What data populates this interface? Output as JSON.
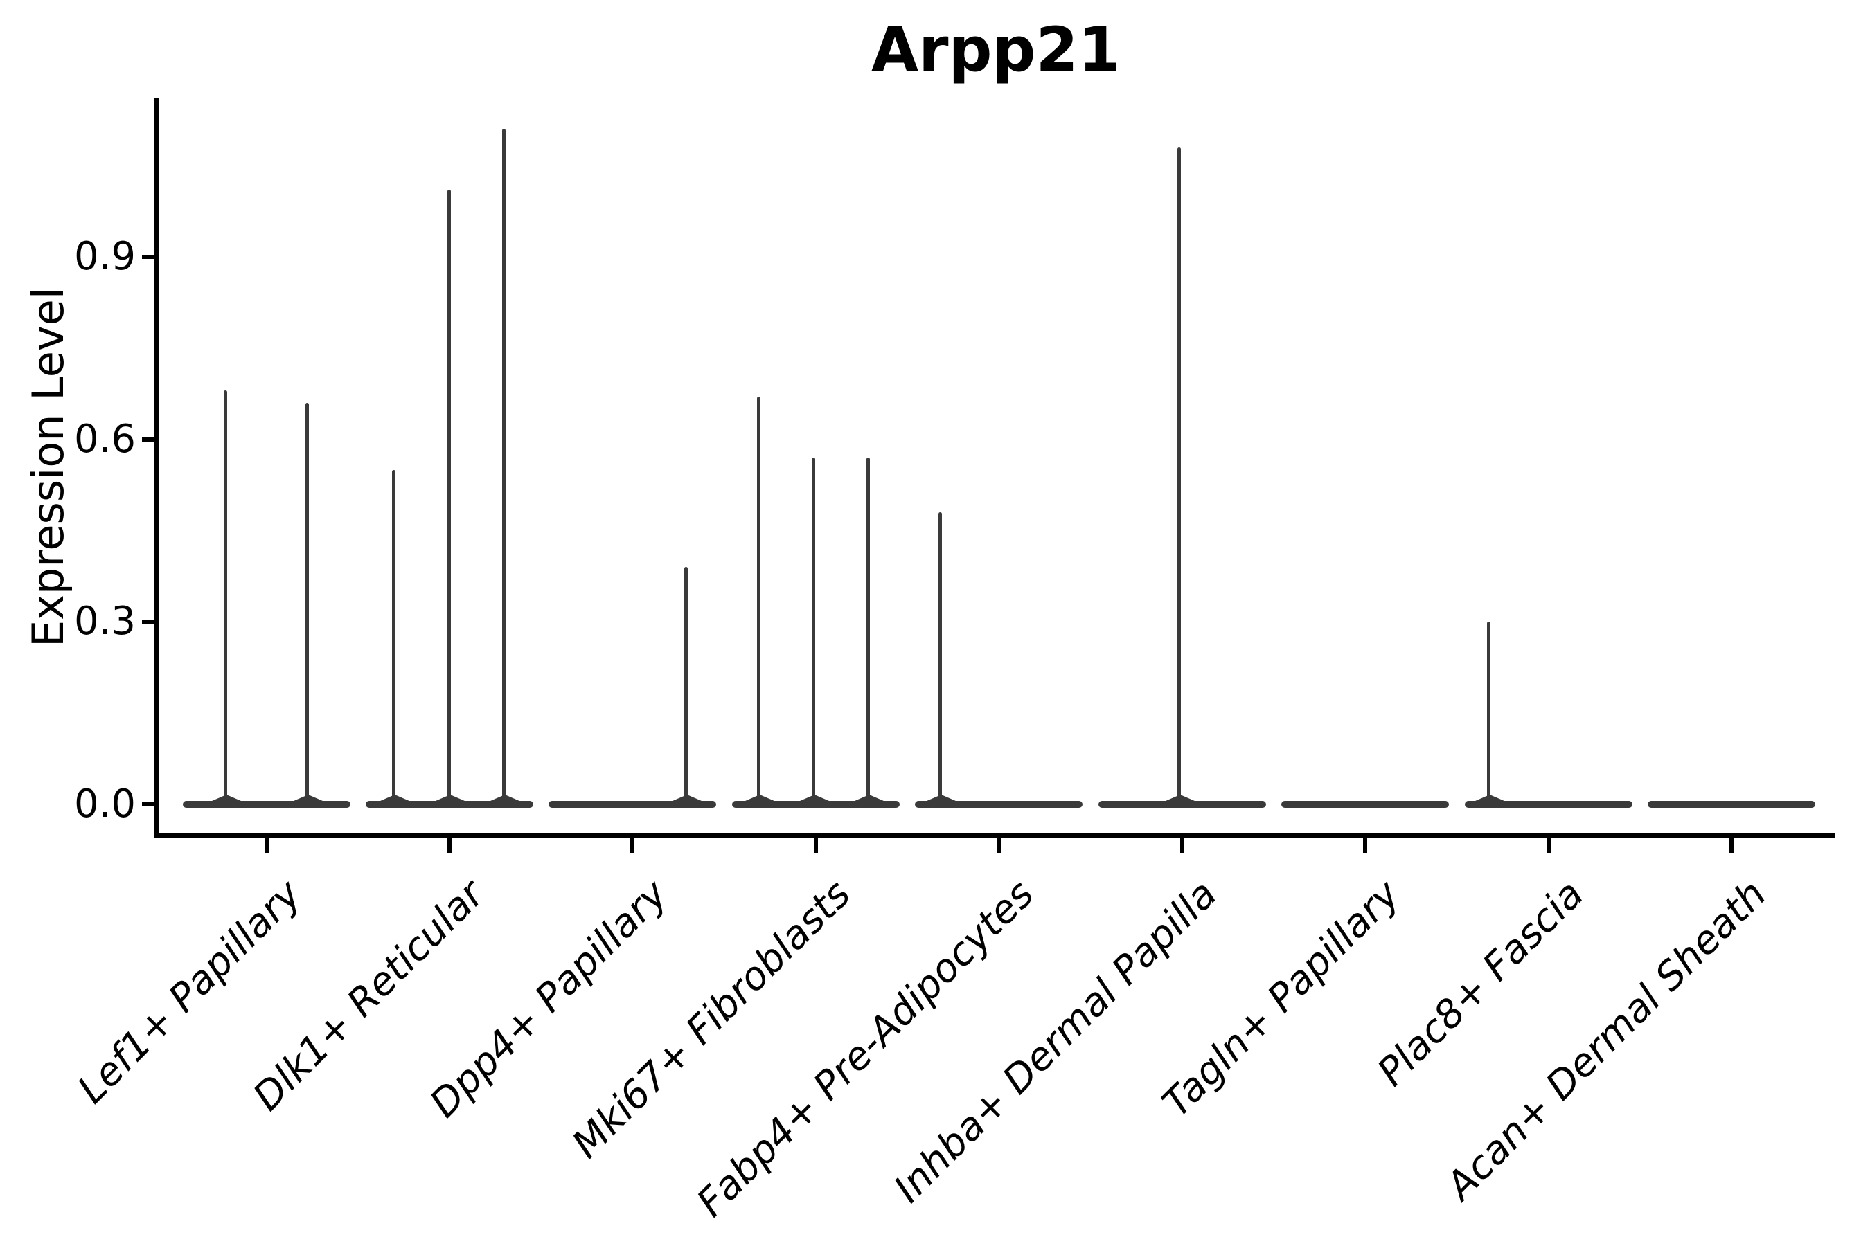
{
  "figure": {
    "background": "#ffffff"
  },
  "chart_data": {
    "type": "violin",
    "title": "Arpp21",
    "ylabel": "Expression Level",
    "xlabel": "",
    "grid": false,
    "legend": false,
    "axis_color": "#000000",
    "violin_color": "#3a3a3a",
    "ylim": [
      -0.055,
      1.16
    ],
    "yticks": [
      {
        "label": "0.0",
        "value": 0.0
      },
      {
        "label": "0.3",
        "value": 0.3
      },
      {
        "label": "0.6",
        "value": 0.6
      },
      {
        "label": "0.9",
        "value": 0.9
      }
    ],
    "categories": [
      "Lef1+ Papillary",
      "Dlk1+ Reticular",
      "Dpp4+ Papillary",
      "Mki67+ Fibroblasts",
      "Fabp4+ Pre-Adipocytes",
      "Inhba+ Dermal Papilla",
      "Tagln+ Papillary",
      "Plac8+ Fascia",
      "Acan+ Dermal Sheath"
    ],
    "groups": [
      {
        "label": "Lef1+ Papillary",
        "baseline_value": 0.0,
        "spikes": [
          {
            "offset": -60,
            "value": 0.68
          },
          {
            "offset": 58,
            "value": 0.66
          }
        ]
      },
      {
        "label": "Dlk1+ Reticular",
        "baseline_value": 0.0,
        "spikes": [
          {
            "offset": -81,
            "value": 0.55
          },
          {
            "offset": -1,
            "value": 1.01
          },
          {
            "offset": 78,
            "value": 1.11
          }
        ]
      },
      {
        "label": "Dpp4+ Papillary",
        "baseline_value": 0.0,
        "spikes": [
          {
            "offset": 77,
            "value": 0.39
          }
        ]
      },
      {
        "label": "Mki67+ Fibroblasts",
        "baseline_value": 0.0,
        "spikes": [
          {
            "offset": -83,
            "value": 0.67
          },
          {
            "offset": -4,
            "value": 0.57
          },
          {
            "offset": 75,
            "value": 0.57
          }
        ]
      },
      {
        "label": "Fabp4+ Pre-Adipocytes",
        "baseline_value": 0.0,
        "spikes": [
          {
            "offset": -85,
            "value": 0.48
          }
        ]
      },
      {
        "label": "Inhba+ Dermal Papilla",
        "baseline_value": 0.0,
        "spikes": [
          {
            "offset": -5,
            "value": 1.08
          }
        ]
      },
      {
        "label": "Tagln+ Papillary",
        "baseline_value": 0.0,
        "spikes": []
      },
      {
        "label": "Plac8+ Fascia",
        "baseline_value": 0.0,
        "spikes": [
          {
            "offset": -87,
            "value": 0.3
          }
        ]
      },
      {
        "label": "Acan+ Dermal Sheath",
        "baseline_value": 0.0,
        "spikes": []
      }
    ]
  }
}
